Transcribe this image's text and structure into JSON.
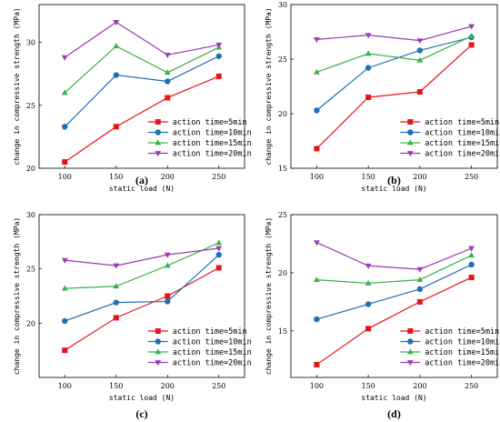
{
  "colors": {
    "5min": "#e8141c",
    "10min": "#1f6fb5",
    "15min": "#3bb24a",
    "20min": "#9b3bb5"
  },
  "chart_data": [
    {
      "type": "line",
      "panel_label": "(a)",
      "xlabel": "static load (N)",
      "ylabel": "change in compressive strength (MPa)",
      "x": [
        100,
        150,
        200,
        250
      ],
      "x_ticks": [
        "100",
        "150",
        "200",
        "250"
      ],
      "xlim": [
        75,
        275
      ],
      "ylim": [
        20,
        33
      ],
      "y_ticks": [
        20,
        25,
        30
      ],
      "legend_position": "bottom-right",
      "series": [
        {
          "name": "action time=5min",
          "key": "5min",
          "marker": "square",
          "values": [
            20.5,
            23.3,
            25.6,
            27.3
          ]
        },
        {
          "name": "action time=10min",
          "key": "10min",
          "marker": "circle",
          "values": [
            23.3,
            27.4,
            26.9,
            28.9
          ]
        },
        {
          "name": "action time=15min",
          "key": "15min",
          "marker": "triangle",
          "values": [
            26.0,
            29.7,
            27.6,
            29.6
          ]
        },
        {
          "name": "action time=20min",
          "key": "20min",
          "marker": "triangle-down",
          "values": [
            28.8,
            31.6,
            29.0,
            29.8
          ]
        }
      ]
    },
    {
      "type": "line",
      "panel_label": "(b)",
      "xlabel": "static load (N)",
      "ylabel": "change in compressive strength (MPa)",
      "x": [
        100,
        150,
        200,
        250
      ],
      "x_ticks": [
        "100",
        "150",
        "200",
        "250"
      ],
      "xlim": [
        75,
        275
      ],
      "ylim": [
        15,
        30
      ],
      "y_ticks": [
        15,
        20,
        25,
        30
      ],
      "legend_position": "bottom-right",
      "series": [
        {
          "name": "action time=5min",
          "key": "5min",
          "marker": "square",
          "values": [
            16.8,
            21.5,
            22.0,
            26.3
          ]
        },
        {
          "name": "action time=10min",
          "key": "10min",
          "marker": "circle",
          "values": [
            20.3,
            24.2,
            25.8,
            27.0
          ]
        },
        {
          "name": "action time=15min",
          "key": "15min",
          "marker": "triangle",
          "values": [
            23.8,
            25.5,
            24.9,
            27.1
          ]
        },
        {
          "name": "action time=20min",
          "key": "20min",
          "marker": "triangle-down",
          "values": [
            26.8,
            27.2,
            26.7,
            28.0
          ]
        }
      ]
    },
    {
      "type": "line",
      "panel_label": "(c)",
      "xlabel": "static load (N)",
      "ylabel": "change in compressive strength (MPa)",
      "x": [
        100,
        150,
        200,
        250
      ],
      "x_ticks": [
        "100",
        "150",
        "200",
        "250"
      ],
      "xlim": [
        75,
        275
      ],
      "ylim": [
        15,
        30
      ],
      "y_ticks": [
        20,
        25,
        30
      ],
      "legend_position": "bottom-right",
      "series": [
        {
          "name": "action time=5min",
          "key": "5min",
          "marker": "square",
          "values": [
            17.5,
            20.5,
            22.5,
            25.1
          ]
        },
        {
          "name": "action time=10min",
          "key": "10min",
          "marker": "circle",
          "values": [
            20.2,
            21.9,
            22.0,
            26.3
          ]
        },
        {
          "name": "action time=15min",
          "key": "15min",
          "marker": "triangle",
          "values": [
            23.2,
            23.4,
            25.3,
            27.4
          ]
        },
        {
          "name": "action time=20min",
          "key": "20min",
          "marker": "triangle-down",
          "values": [
            25.8,
            25.3,
            26.3,
            26.9
          ]
        }
      ]
    },
    {
      "type": "line",
      "panel_label": "(d)",
      "xlabel": "static load (N)",
      "ylabel": "change in compressive strength (MPa)",
      "x": [
        100,
        150,
        200,
        250
      ],
      "x_ticks": [
        "100",
        "150",
        "200",
        "250"
      ],
      "xlim": [
        75,
        275
      ],
      "ylim": [
        11,
        25
      ],
      "y_ticks": [
        15,
        20,
        25
      ],
      "legend_position": "bottom-right",
      "series": [
        {
          "name": "action time=5min",
          "key": "5min",
          "marker": "square",
          "values": [
            12.1,
            15.2,
            17.5,
            19.6
          ]
        },
        {
          "name": "action time=10min",
          "key": "10min",
          "marker": "circle",
          "values": [
            16.0,
            17.3,
            18.6,
            20.7
          ]
        },
        {
          "name": "action time=15min",
          "key": "15min",
          "marker": "triangle",
          "values": [
            19.4,
            19.1,
            19.4,
            21.5
          ]
        },
        {
          "name": "action time=20min",
          "key": "20min",
          "marker": "triangle-down",
          "values": [
            22.6,
            20.6,
            20.3,
            22.1
          ]
        }
      ]
    }
  ]
}
